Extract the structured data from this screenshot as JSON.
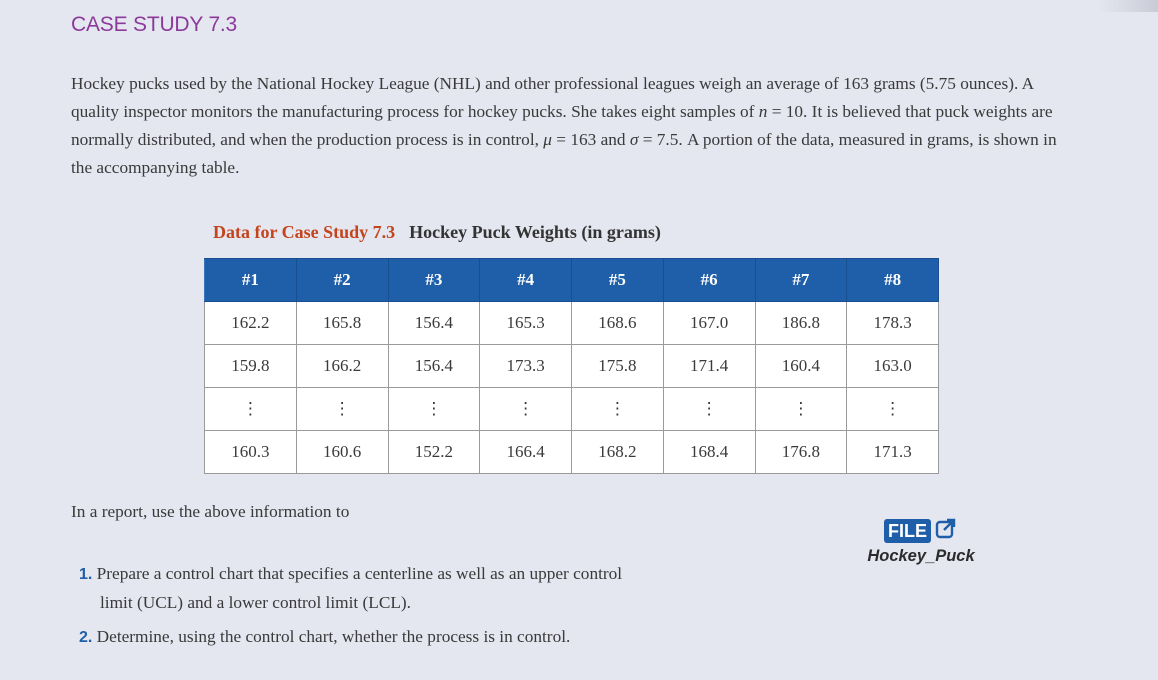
{
  "header": {
    "title": "CASE STUDY 7.3"
  },
  "intro": {
    "part1": "Hockey pucks used by the National Hockey League (NHL) and other professional leagues weigh an average of 163 grams (5.75 ounces). A quality inspector monitors the manufacturing process for hockey pucks. She takes eight samples of ",
    "n_symbol": "n",
    "part2": " = 10. It is believed that puck weights are normally distributed, and when the production process is in control, ",
    "mu_symbol": "μ",
    "part3": " = 163 and ",
    "sigma_symbol": "σ",
    "part4": " = 7.5. A portion of the data, measured in grams, is shown in the accompanying table."
  },
  "table": {
    "caption_label": "Data for Case Study 7.3",
    "caption_title": "Hockey Puck Weights (in grams)",
    "headers": [
      "#1",
      "#2",
      "#3",
      "#4",
      "#5",
      "#6",
      "#7",
      "#8"
    ],
    "rows": [
      [
        "162.2",
        "165.8",
        "156.4",
        "165.3",
        "168.6",
        "167.0",
        "186.8",
        "178.3"
      ],
      [
        "159.8",
        "166.2",
        "156.4",
        "173.3",
        "175.8",
        "171.4",
        "160.4",
        "163.0"
      ],
      [
        "⋮",
        "⋮",
        "⋮",
        "⋮",
        "⋮",
        "⋮",
        "⋮",
        "⋮"
      ],
      [
        "160.3",
        "160.6",
        "152.2",
        "166.4",
        "168.2",
        "168.4",
        "176.8",
        "171.3"
      ]
    ]
  },
  "after_text": "In a report, use the above information to",
  "tasks": [
    {
      "num": "1.",
      "line1": "Prepare a control chart that specifies a centerline as well as an upper control",
      "line2": "limit (UCL) and a lower control limit (LCL)."
    },
    {
      "num": "2.",
      "line1": "Determine, using the control chart, whether the process is in control.",
      "line2": ""
    }
  ],
  "file": {
    "badge": "FILE",
    "icon": "external-link-icon",
    "name": "Hockey_Puck"
  }
}
